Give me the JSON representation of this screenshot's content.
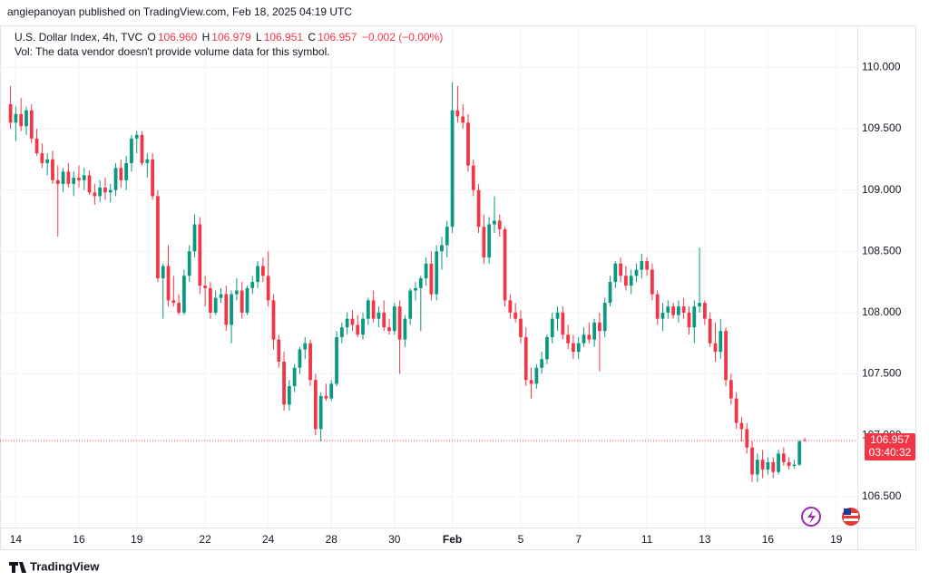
{
  "header": {
    "published": "angiepanoyan published on TradingView.com, Feb 18, 2025 04:19 UTC",
    "legend": {
      "symbol": "U.S. Dollar Index, 4h, TVC",
      "o": "O",
      "open": "106.960",
      "h": "H",
      "high": "106.979",
      "l": "L",
      "low": "106.951",
      "c": "C",
      "close": "106.957",
      "change": "−0.002 (−0.00%)"
    },
    "volume_note": "Vol: The data vendor doesn't provide volume data for this symbol."
  },
  "chart_data": {
    "type": "candlestick",
    "up_color": "#089981",
    "down_color": "#f23645",
    "grid": true,
    "xlim": [
      -2,
      161
    ],
    "ylim": [
      106.247,
      110.343
    ],
    "yticks": [
      {
        "value": 106.5,
        "label": "106.500"
      },
      {
        "value": 107,
        "label": "107.000"
      },
      {
        "value": 107.5,
        "label": "107.500"
      },
      {
        "value": 108,
        "label": "108.000"
      },
      {
        "value": 108.5,
        "label": "108.500"
      },
      {
        "value": 109,
        "label": "109.000"
      },
      {
        "value": 109.5,
        "label": "109.500"
      },
      {
        "value": 110,
        "label": "110.000"
      }
    ],
    "xticks": [
      {
        "value": 1,
        "label": "14"
      },
      {
        "value": 13,
        "label": "16"
      },
      {
        "value": 24,
        "label": "19"
      },
      {
        "value": 37,
        "label": "22"
      },
      {
        "value": 49,
        "label": "24"
      },
      {
        "value": 61,
        "label": "28"
      },
      {
        "value": 73,
        "label": "30"
      },
      {
        "value": 84,
        "label": "Feb"
      },
      {
        "value": 97,
        "label": "5"
      },
      {
        "value": 108,
        "label": "7"
      },
      {
        "value": 121,
        "label": "11"
      },
      {
        "value": 132,
        "label": "13"
      },
      {
        "value": 144,
        "label": "16"
      },
      {
        "value": 157,
        "label": "19"
      }
    ],
    "last_price": 106.957,
    "countdown": "03:40:32",
    "candles": [
      [
        109.7,
        109.85,
        109.5,
        109.55
      ],
      [
        109.55,
        109.68,
        109.4,
        109.62
      ],
      [
        109.62,
        109.75,
        109.48,
        109.52
      ],
      [
        109.52,
        109.68,
        109.45,
        109.65
      ],
      [
        109.65,
        109.7,
        109.38,
        109.42
      ],
      [
        109.42,
        109.5,
        109.28,
        109.3
      ],
      [
        109.3,
        109.38,
        109.18,
        109.22
      ],
      [
        109.22,
        109.3,
        109.12,
        109.25
      ],
      [
        109.25,
        109.32,
        109.05,
        109.08
      ],
      [
        109.08,
        109.2,
        108.62,
        109.05
      ],
      [
        109.05,
        109.18,
        108.98,
        109.15
      ],
      [
        109.15,
        109.22,
        109.02,
        109.05
      ],
      [
        109.05,
        109.15,
        108.95,
        109.1
      ],
      [
        109.1,
        109.2,
        109.02,
        109.08
      ],
      [
        109.08,
        109.18,
        109.0,
        109.12
      ],
      [
        109.12,
        109.16,
        108.96,
        108.98
      ],
      [
        108.98,
        109.05,
        108.88,
        108.95
      ],
      [
        108.95,
        109.08,
        108.9,
        109.02
      ],
      [
        109.02,
        109.1,
        108.92,
        108.98
      ],
      [
        108.98,
        109.05,
        108.9,
        109.0
      ],
      [
        109.0,
        109.22,
        108.95,
        109.18
      ],
      [
        109.18,
        109.25,
        109.02,
        109.08
      ],
      [
        109.08,
        109.28,
        109.0,
        109.22
      ],
      [
        109.22,
        109.45,
        109.15,
        109.42
      ],
      [
        109.42,
        109.48,
        109.3,
        109.45
      ],
      [
        109.45,
        109.48,
        109.2,
        109.22
      ],
      [
        109.22,
        109.3,
        109.1,
        109.25
      ],
      [
        109.25,
        109.3,
        108.92,
        108.95
      ],
      [
        108.95,
        109.0,
        108.25,
        108.28
      ],
      [
        108.28,
        108.4,
        107.95,
        108.38
      ],
      [
        108.38,
        108.55,
        108.05,
        108.1
      ],
      [
        108.1,
        108.3,
        108.05,
        108.08
      ],
      [
        108.08,
        108.15,
        107.98,
        108.0
      ],
      [
        108.0,
        108.35,
        107.98,
        108.3
      ],
      [
        108.3,
        108.55,
        108.25,
        108.5
      ],
      [
        108.5,
        108.8,
        108.45,
        108.72
      ],
      [
        108.72,
        108.78,
        108.15,
        108.22
      ],
      [
        108.22,
        108.3,
        108.05,
        108.2
      ],
      [
        108.2,
        108.25,
        107.95,
        108.0
      ],
      [
        108.0,
        108.18,
        107.98,
        108.12
      ],
      [
        108.12,
        108.2,
        108.08,
        108.15
      ],
      [
        108.15,
        108.22,
        107.85,
        107.9
      ],
      [
        107.9,
        108.18,
        107.75,
        108.15
      ],
      [
        108.15,
        108.28,
        108.1,
        108.18
      ],
      [
        108.18,
        108.25,
        107.95,
        108.0
      ],
      [
        108.0,
        108.22,
        107.98,
        108.2
      ],
      [
        108.2,
        108.3,
        108.15,
        108.25
      ],
      [
        108.25,
        108.42,
        108.2,
        108.38
      ],
      [
        108.38,
        108.45,
        108.25,
        108.3
      ],
      [
        108.3,
        108.5,
        108.05,
        108.1
      ],
      [
        108.1,
        108.15,
        107.7,
        107.78
      ],
      [
        107.78,
        107.82,
        107.55,
        107.6
      ],
      [
        107.6,
        107.68,
        107.2,
        107.25
      ],
      [
        107.25,
        107.45,
        107.2,
        107.4
      ],
      [
        107.4,
        107.58,
        107.35,
        107.55
      ],
      [
        107.55,
        107.72,
        107.5,
        107.7
      ],
      [
        107.7,
        107.8,
        107.62,
        107.75
      ],
      [
        107.75,
        107.78,
        107.4,
        107.45
      ],
      [
        107.45,
        107.5,
        107.0,
        107.05
      ],
      [
        107.05,
        107.35,
        106.95,
        107.32
      ],
      [
        107.32,
        107.42,
        107.28,
        107.3
      ],
      [
        107.3,
        107.45,
        107.28,
        107.42
      ],
      [
        107.42,
        107.85,
        107.4,
        107.8
      ],
      [
        107.8,
        107.92,
        107.75,
        107.88
      ],
      [
        107.88,
        108.0,
        107.82,
        107.95
      ],
      [
        107.95,
        108.02,
        107.85,
        107.9
      ],
      [
        107.9,
        107.98,
        107.8,
        107.82
      ],
      [
        107.82,
        108.0,
        107.78,
        107.95
      ],
      [
        107.95,
        108.12,
        107.9,
        108.1
      ],
      [
        108.1,
        108.18,
        107.92,
        107.95
      ],
      [
        107.95,
        108.05,
        107.88,
        108.0
      ],
      [
        108.0,
        108.1,
        107.85,
        107.88
      ],
      [
        107.88,
        107.95,
        107.82,
        107.85
      ],
      [
        107.85,
        108.08,
        107.82,
        108.05
      ],
      [
        108.05,
        108.1,
        107.5,
        107.78
      ],
      [
        107.78,
        107.98,
        107.72,
        107.95
      ],
      [
        107.95,
        108.2,
        107.9,
        108.18
      ],
      [
        108.18,
        108.25,
        108.1,
        108.2
      ],
      [
        108.2,
        108.3,
        107.85,
        108.28
      ],
      [
        108.28,
        108.45,
        108.22,
        108.4
      ],
      [
        108.4,
        108.5,
        108.1,
        108.15
      ],
      [
        108.15,
        108.55,
        108.1,
        108.5
      ],
      [
        108.5,
        108.62,
        108.35,
        108.55
      ],
      [
        108.55,
        108.75,
        108.45,
        108.7
      ],
      [
        108.7,
        109.88,
        108.65,
        109.65
      ],
      [
        109.65,
        109.85,
        109.55,
        109.6
      ],
      [
        109.6,
        109.7,
        109.5,
        109.55
      ],
      [
        109.55,
        109.62,
        109.15,
        109.2
      ],
      [
        109.2,
        109.25,
        108.95,
        109.0
      ],
      [
        109.0,
        109.05,
        108.65,
        108.7
      ],
      [
        108.7,
        108.8,
        108.4,
        108.45
      ],
      [
        108.45,
        108.78,
        108.4,
        108.72
      ],
      [
        108.72,
        108.95,
        108.65,
        108.75
      ],
      [
        108.75,
        108.8,
        108.62,
        108.68
      ],
      [
        108.68,
        108.7,
        108.05,
        108.1
      ],
      [
        108.1,
        108.15,
        107.95,
        108.0
      ],
      [
        108.0,
        108.08,
        107.92,
        107.95
      ],
      [
        107.95,
        108.02,
        107.75,
        107.8
      ],
      [
        107.8,
        107.88,
        107.4,
        107.45
      ],
      [
        107.45,
        107.55,
        107.3,
        107.42
      ],
      [
        107.42,
        107.58,
        107.38,
        107.55
      ],
      [
        107.55,
        107.68,
        107.5,
        107.62
      ],
      [
        107.62,
        107.82,
        107.58,
        107.8
      ],
      [
        107.8,
        108.0,
        107.75,
        107.95
      ],
      [
        107.95,
        108.05,
        107.85,
        108.0
      ],
      [
        108.0,
        108.05,
        107.78,
        107.82
      ],
      [
        107.82,
        107.9,
        107.7,
        107.75
      ],
      [
        107.75,
        107.82,
        107.62,
        107.68
      ],
      [
        107.68,
        107.8,
        107.62,
        107.75
      ],
      [
        107.75,
        107.88,
        107.72,
        107.82
      ],
      [
        107.82,
        107.92,
        107.75,
        107.78
      ],
      [
        107.78,
        107.95,
        107.72,
        107.92
      ],
      [
        107.92,
        108.0,
        107.52,
        107.85
      ],
      [
        107.85,
        108.12,
        107.8,
        108.08
      ],
      [
        108.08,
        108.3,
        108.05,
        108.25
      ],
      [
        108.25,
        108.42,
        108.2,
        108.4
      ],
      [
        108.4,
        108.45,
        108.25,
        108.3
      ],
      [
        108.3,
        108.38,
        108.18,
        108.22
      ],
      [
        108.22,
        108.35,
        108.15,
        108.3
      ],
      [
        108.3,
        108.4,
        108.25,
        108.35
      ],
      [
        108.35,
        108.48,
        108.28,
        108.42
      ],
      [
        108.42,
        108.45,
        108.3,
        108.35
      ],
      [
        108.35,
        108.4,
        108.1,
        108.15
      ],
      [
        108.15,
        108.18,
        107.9,
        107.95
      ],
      [
        107.95,
        108.08,
        107.85,
        108.0
      ],
      [
        108.0,
        108.1,
        107.95,
        108.05
      ],
      [
        108.05,
        108.08,
        107.95,
        107.98
      ],
      [
        107.98,
        108.1,
        107.92,
        108.05
      ],
      [
        108.05,
        108.12,
        107.95,
        108.0
      ],
      [
        108.0,
        108.05,
        107.82,
        107.88
      ],
      [
        107.88,
        108.1,
        107.75,
        108.05
      ],
      [
        108.05,
        108.53,
        108.0,
        108.08
      ],
      [
        108.08,
        108.1,
        107.9,
        107.95
      ],
      [
        107.95,
        108.0,
        107.72,
        107.75
      ],
      [
        107.75,
        107.92,
        107.6,
        107.68
      ],
      [
        107.68,
        107.95,
        107.62,
        107.85
      ],
      [
        107.85,
        107.88,
        107.4,
        107.45
      ],
      [
        107.45,
        107.5,
        107.25,
        107.3
      ],
      [
        107.3,
        107.35,
        107.05,
        107.1
      ],
      [
        107.1,
        107.15,
        106.95,
        107.05
      ],
      [
        107.05,
        107.1,
        106.85,
        106.9
      ],
      [
        106.9,
        106.95,
        106.62,
        106.68
      ],
      [
        106.68,
        106.85,
        106.62,
        106.8
      ],
      [
        106.8,
        106.88,
        106.65,
        106.72
      ],
      [
        106.72,
        106.82,
        106.68,
        106.78
      ],
      [
        106.78,
        106.82,
        106.65,
        106.7
      ],
      [
        106.7,
        106.88,
        106.68,
        106.85
      ],
      [
        106.85,
        106.9,
        106.75,
        106.78
      ],
      [
        106.78,
        106.82,
        106.72,
        106.75
      ],
      [
        106.75,
        106.8,
        106.73,
        106.76
      ],
      [
        106.76,
        106.96,
        106.75,
        106.95
      ],
      [
        106.96,
        106.979,
        106.951,
        106.957
      ]
    ]
  },
  "footer": {
    "brand": "TradingView"
  }
}
